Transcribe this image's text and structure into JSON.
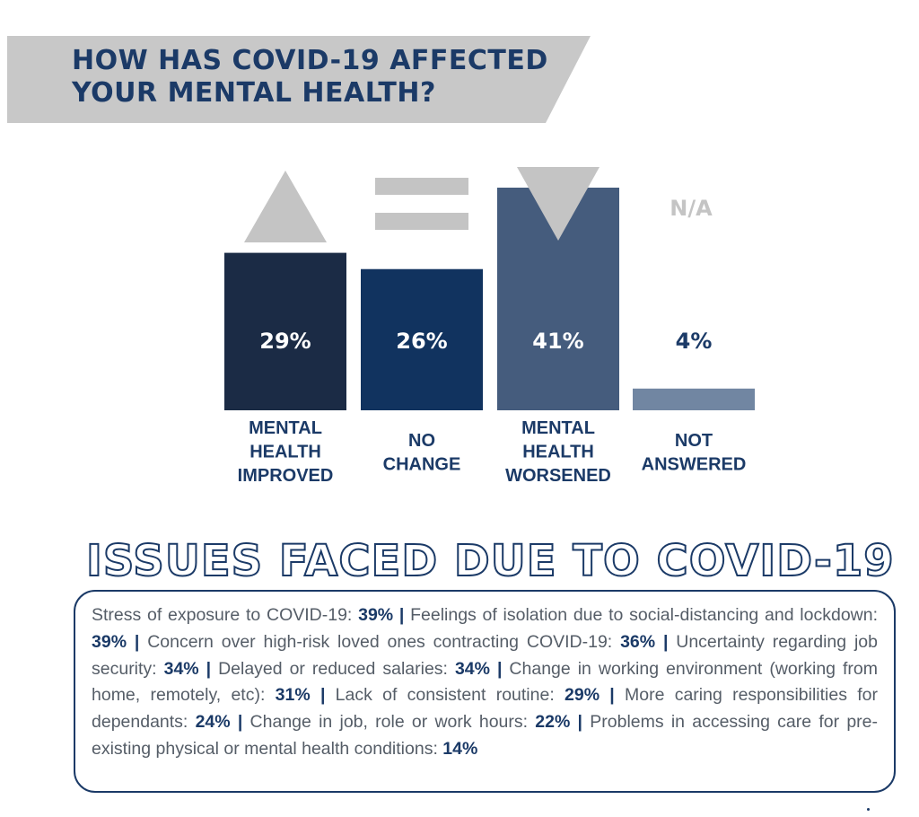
{
  "title": {
    "line1": "HOW HAS COVID-19 AFFECTED",
    "line2": "YOUR MENTAL HEALTH?"
  },
  "chart_data": {
    "type": "bar",
    "title": "HOW HAS COVID-19 AFFECTED YOUR MENTAL HEALTH?",
    "categories": [
      [
        "MENTAL",
        "HEALTH",
        "IMPROVED"
      ],
      [
        "NO",
        "CHANGE"
      ],
      [
        "MENTAL",
        "HEALTH",
        "WORSENED"
      ],
      [
        "NOT",
        "ANSWERED"
      ]
    ],
    "values": [
      29,
      26,
      41,
      4
    ],
    "value_labels": [
      "29%",
      "26%",
      "41%",
      "4%"
    ],
    "unit": "%",
    "symbols": [
      "up-triangle",
      "equals",
      "down-triangle",
      "N/A"
    ],
    "colors": [
      "#1b2b45",
      "#11335f",
      "#455c7d",
      "#7186a2"
    ],
    "symbol_color": "#c4c4c4",
    "ylim": [
      0,
      41
    ]
  },
  "issues": {
    "title": "ISSUES FACED DUE TO COVID-19",
    "items": [
      {
        "label": "Stress of exposure to COVID-19:",
        "value": "39%"
      },
      {
        "label": "Feelings of isolation due to social-distancing and lockdown:",
        "value": "39%"
      },
      {
        "label": "Concern over high-risk loved ones contracting COVID-19:",
        "value": "36%"
      },
      {
        "label": "Uncertainty regarding job security:",
        "value": "34%"
      },
      {
        "label": "Delayed or reduced salaries:",
        "value": "34%"
      },
      {
        "label": "Change in working environment (working from home, remotely, etc):",
        "value": "31%"
      },
      {
        "label": "Lack of consistent routine:",
        "value": "29%"
      },
      {
        "label": "More caring responsibilities for dependants:",
        "value": "24%"
      },
      {
        "label": "Change in job, role or work hours:",
        "value": "22%"
      },
      {
        "label": "Problems in accessing care for pre-existing physical or mental health conditions:",
        "value": "14%"
      }
    ],
    "separator": "|"
  },
  "colors": {
    "navy": "#1b3a67",
    "banner_gray": "#c8c8c8",
    "body_text": "#555d67"
  }
}
